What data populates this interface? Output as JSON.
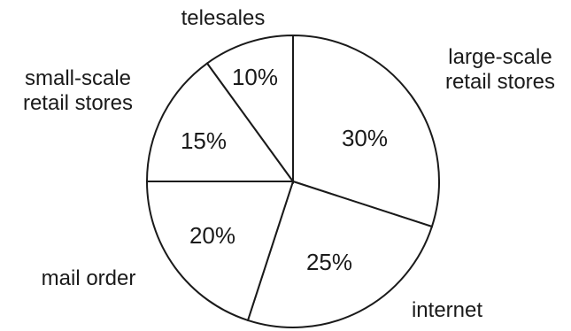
{
  "chart_data": {
    "type": "pie",
    "slices": [
      {
        "label": [
          "large-scale",
          "retail stores"
        ],
        "value": 30,
        "value_label": "30%"
      },
      {
        "label": [
          "internet"
        ],
        "value": 25,
        "value_label": "25%"
      },
      {
        "label": [
          "mail order"
        ],
        "value": 20,
        "value_label": "20%"
      },
      {
        "label": [
          "small-scale",
          "retail stores"
        ],
        "value": 15,
        "value_label": "15%"
      },
      {
        "label": [
          "telesales"
        ],
        "value": 10,
        "value_label": "10%"
      }
    ],
    "start": "12 o'clock",
    "direction": "clockwise",
    "fill_color": "#ffffff",
    "line_color": "#1a1a1a"
  }
}
